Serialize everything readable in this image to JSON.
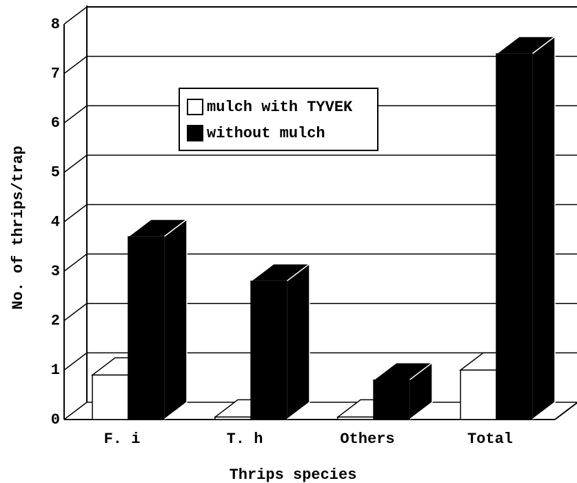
{
  "chart_data": {
    "type": "bar3d",
    "x_label": "Thrips species",
    "y_label": "No. of thrips/trap",
    "categories": [
      "F. i",
      "T. h",
      "Others",
      "Total"
    ],
    "series": [
      {
        "name": "mulch with TYVEK",
        "color": "#ffffff",
        "values": [
          0.9,
          0.05,
          0.05,
          1.0
        ]
      },
      {
        "name": "without mulch",
        "color": "#000000",
        "values": [
          3.7,
          2.8,
          0.8,
          7.4
        ]
      }
    ],
    "ylim": [
      0,
      8
    ],
    "yticks": [
      0,
      1,
      2,
      3,
      4,
      5,
      6,
      7,
      8
    ],
    "grid": true
  }
}
